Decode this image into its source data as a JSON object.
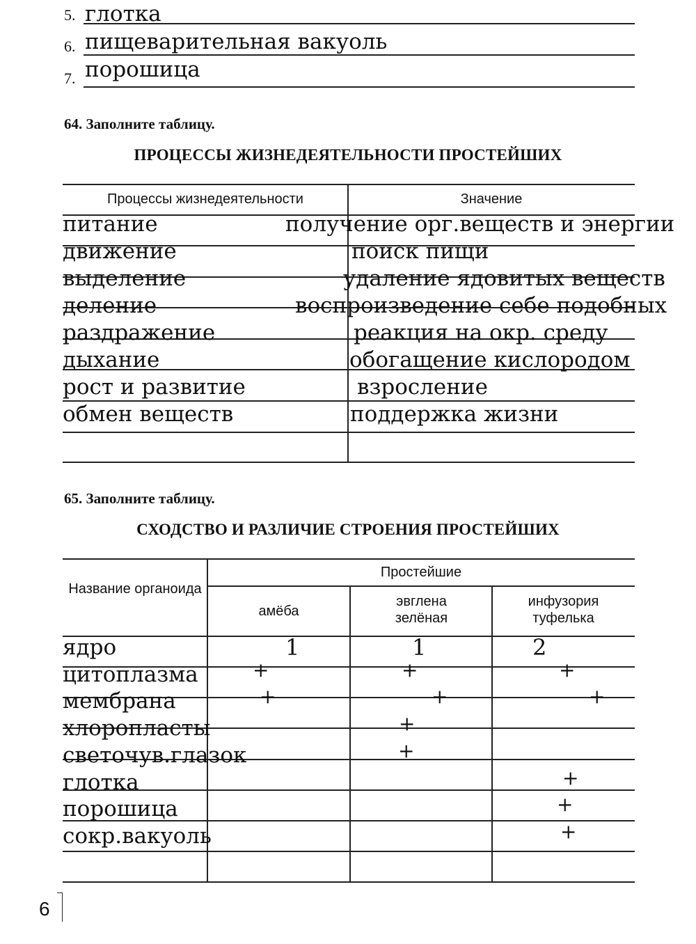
{
  "list_items": [
    {
      "number": "5.",
      "answer": "глотка"
    },
    {
      "number": "6.",
      "answer": "пищеварительная вакуоль"
    },
    {
      "number": "7.",
      "answer": "порошица"
    }
  ],
  "task64": {
    "label": "64. Заполните таблицу.",
    "title": "ПРОЦЕССЫ ЖИЗНЕДЕЯТЕЛЬНОСТИ ПРОСТЕЙШИХ",
    "headers": [
      "Процессы жизнедеятельности",
      "Значение"
    ],
    "rows": [
      [
        "питание",
        "получение орг.веществ и энергии"
      ],
      [
        "движение",
        "поиск пищи"
      ],
      [
        "выделение",
        "удаление ядовитых веществ"
      ],
      [
        "деление",
        "воспроизведение себе подобных"
      ],
      [
        "раздражение",
        "реакция на окр. среду"
      ],
      [
        "дыхание",
        "обогащение кислородом"
      ],
      [
        "рост и развитие",
        "взросление"
      ],
      [
        "обмен веществ",
        "поддержка жизни"
      ]
    ]
  },
  "task65": {
    "label": "65. Заполните таблицу.",
    "title": "СХОДСТВО И РАЗЛИЧИЕ СТРОЕНИЯ ПРОСТЕЙШИХ",
    "header_organoid": "Название органоида",
    "header_group": "Простейшие",
    "columns": [
      "амёба",
      "эвглена зелёная",
      "инфузория туфелька"
    ],
    "rows": [
      [
        "ядро",
        "1",
        "1",
        "2"
      ],
      [
        "цитоплазма",
        "+",
        "+",
        "+"
      ],
      [
        "мембрана",
        "+",
        "+",
        "+"
      ],
      [
        "хлоропласты",
        "",
        "+",
        ""
      ],
      [
        "светочув.глазок",
        "",
        "+",
        ""
      ],
      [
        "глотка",
        "",
        "",
        "+"
      ],
      [
        "порошица",
        "",
        "",
        "+"
      ],
      [
        "сокр.вакуоль",
        "",
        "",
        "+"
      ]
    ]
  },
  "page_number": "6"
}
